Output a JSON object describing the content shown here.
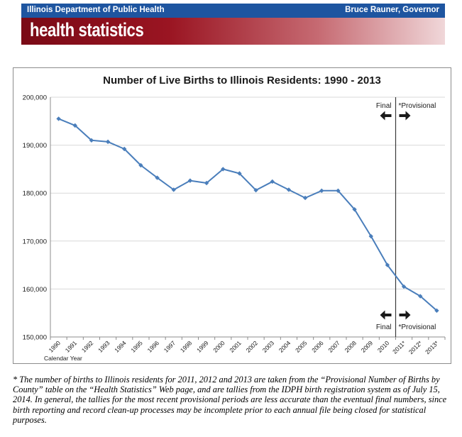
{
  "header": {
    "agency": "Illinois Department of Public Health",
    "governor": "Bruce Rauner, Governor",
    "title": "health statistics",
    "top_bar_color": "#1e55a0",
    "banner_color": "#9a1522"
  },
  "chart_data": {
    "type": "line",
    "title": "Number of Live Births to Illinois Residents:  1990 - 2013",
    "xlabel": "Calendar Year",
    "ylabel": "",
    "categories": [
      "1990",
      "1991",
      "1992",
      "1993",
      "1994",
      "1995",
      "1996",
      "1997",
      "1998",
      "1999",
      "2000",
      "2001",
      "2002",
      "2003",
      "2004",
      "2005",
      "2006",
      "2007",
      "2008",
      "2009",
      "2010",
      "2011*",
      "2012*",
      "2013*"
    ],
    "series": [
      {
        "values": [
          195500,
          194100,
          191000,
          190700,
          189200,
          185800,
          183200,
          180700,
          182600,
          182100,
          185000,
          184100,
          180600,
          182400,
          180700,
          179000,
          180500,
          180500,
          176600,
          171000,
          165000,
          160500,
          158500,
          155500
        ],
        "color": "#4a7ebb"
      }
    ],
    "ylim": [
      150000,
      200000
    ],
    "yticks": [
      "150,000",
      "160,000",
      "170,000",
      "180,000",
      "190,000",
      "200,000"
    ],
    "grid": true,
    "divider_after": "2010",
    "annotations": {
      "final": "Final",
      "provisional": "*Provisional"
    }
  },
  "footnote": "* The number of births to Illinois residents for 2011, 2012 and 2013 are taken from the “Provisional Number of Births by County” table on the “Health Statistics” Web page, and are tallies from the IDPH birth registration system as of July 15, 2014. In general, the tallies for the most recent provisional periods are less accurate than the eventual final numbers, since birth reporting and record clean-up processes may be incomplete prior to each annual file being closed for statistical purposes."
}
